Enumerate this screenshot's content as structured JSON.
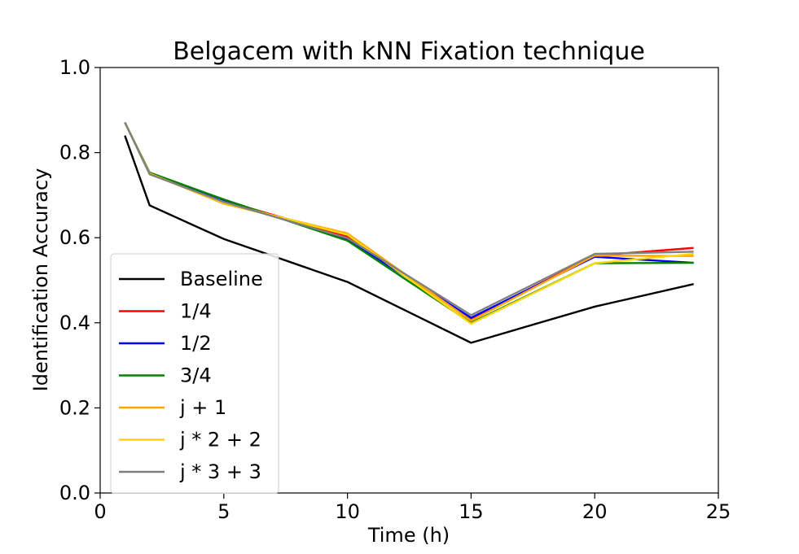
{
  "chart_data": {
    "type": "line",
    "title": "Belgacem with kNN Fixation technique",
    "xlabel": "Time (h)",
    "ylabel": "Identification Accuracy",
    "xlim": [
      0,
      25
    ],
    "ylim": [
      0.0,
      1.0
    ],
    "xticks": [
      0,
      5,
      10,
      15,
      20,
      25
    ],
    "xtick_labels": [
      "0",
      "5",
      "10",
      "15",
      "20",
      "25"
    ],
    "yticks": [
      0.0,
      0.2,
      0.4,
      0.6,
      0.8,
      1.0
    ],
    "ytick_labels": [
      "0.0",
      "0.2",
      "0.4",
      "0.6",
      "0.8",
      "1.0"
    ],
    "grid": false,
    "legend_position": "lower-left",
    "x": [
      1,
      2,
      5,
      10,
      15,
      20,
      24
    ],
    "series": [
      {
        "name": "Baseline",
        "color": "#000000",
        "values": [
          0.84,
          0.676,
          0.597,
          0.496,
          0.353,
          0.438,
          0.491
        ]
      },
      {
        "name": "1/4",
        "color": "#ff0000",
        "values": [
          0.871,
          0.751,
          0.687,
          0.603,
          0.41,
          0.558,
          0.576
        ]
      },
      {
        "name": "1/2",
        "color": "#0000ff",
        "values": [
          0.871,
          0.751,
          0.688,
          0.595,
          0.412,
          0.555,
          0.541
        ]
      },
      {
        "name": "3/4",
        "color": "#008000",
        "values": [
          0.871,
          0.753,
          0.69,
          0.593,
          0.4,
          0.54,
          0.541
        ]
      },
      {
        "name": "j + 1",
        "color": "#ffa500",
        "values": [
          0.871,
          0.751,
          0.68,
          0.61,
          0.405,
          0.558,
          0.557
        ]
      },
      {
        "name": "j * 2 + 2",
        "color": "#ffd700",
        "values": [
          0.871,
          0.75,
          0.682,
          0.607,
          0.398,
          0.54,
          0.562
        ]
      },
      {
        "name": "j * 3 + 3",
        "color": "#808080",
        "values": [
          0.871,
          0.749,
          0.684,
          0.599,
          0.418,
          0.562,
          0.567
        ]
      }
    ]
  }
}
